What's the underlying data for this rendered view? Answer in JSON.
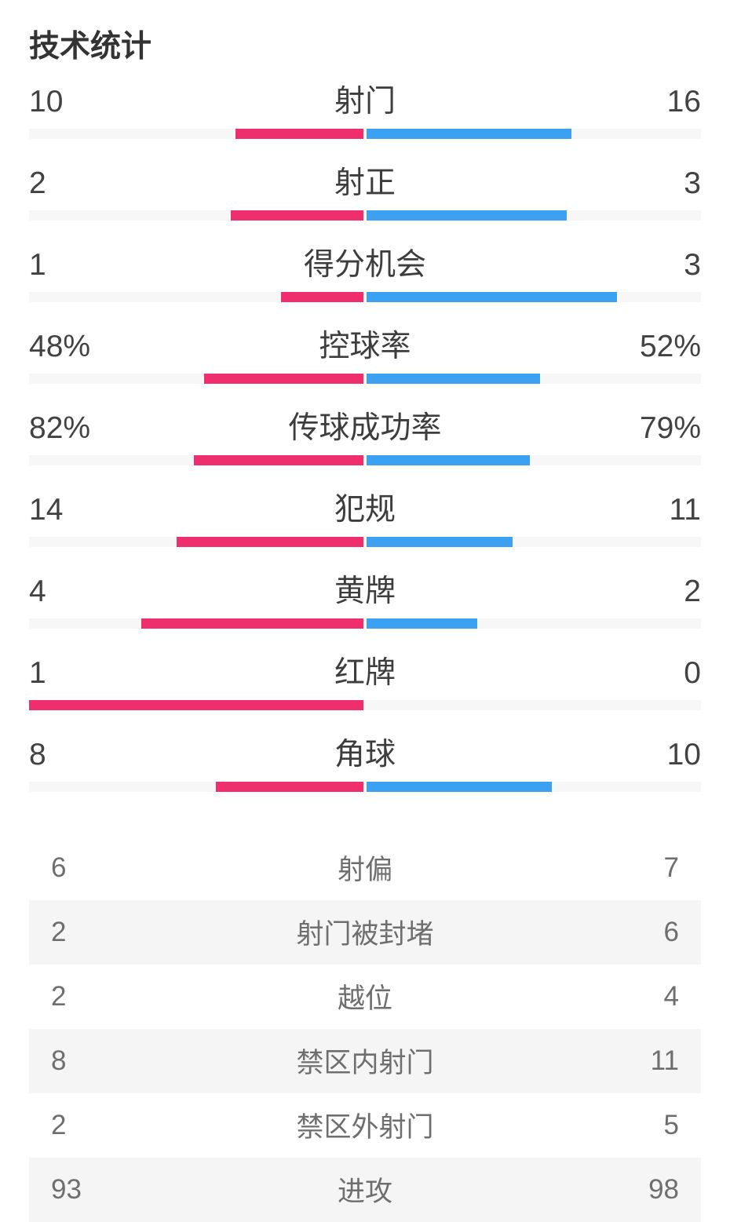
{
  "title": "技术统计",
  "colors": {
    "home": "#ee2e6d",
    "away": "#3da1f2",
    "track": "#f7f7f8",
    "stripe": "#f5f5f6",
    "title_text": "#333333",
    "bar_section_text": "#3d3d3d",
    "list_section_text": "#6e6e6e"
  },
  "chart_data": {
    "type": "bar",
    "variant": "bilateral-paired-stat-bars",
    "title": "技术统计",
    "legend_position": "none",
    "grid": false,
    "series": [
      {
        "name": "home",
        "color": "#ee2e6d",
        "side": "left"
      },
      {
        "name": "away",
        "color": "#3da1f2",
        "side": "right"
      }
    ],
    "bars": [
      {
        "label": "射门",
        "home": 10,
        "away": 16,
        "home_display": "10",
        "away_display": "16"
      },
      {
        "label": "射正",
        "home": 2,
        "away": 3,
        "home_display": "2",
        "away_display": "3"
      },
      {
        "label": "得分机会",
        "home": 1,
        "away": 3,
        "home_display": "1",
        "away_display": "3"
      },
      {
        "label": "控球率",
        "home": 48,
        "away": 52,
        "home_display": "48%",
        "away_display": "52%"
      },
      {
        "label": "传球成功率",
        "home": 82,
        "away": 79,
        "home_display": "82%",
        "away_display": "79%"
      },
      {
        "label": "犯规",
        "home": 14,
        "away": 11,
        "home_display": "14",
        "away_display": "11"
      },
      {
        "label": "黄牌",
        "home": 4,
        "away": 2,
        "home_display": "4",
        "away_display": "2"
      },
      {
        "label": "红牌",
        "home": 1,
        "away": 0,
        "home_display": "1",
        "away_display": "0"
      },
      {
        "label": "角球",
        "home": 8,
        "away": 10,
        "home_display": "8",
        "away_display": "10"
      }
    ],
    "list": [
      {
        "label": "射偏",
        "home_display": "6",
        "away_display": "7"
      },
      {
        "label": "射门被封堵",
        "home_display": "2",
        "away_display": "6"
      },
      {
        "label": "越位",
        "home_display": "2",
        "away_display": "4"
      },
      {
        "label": "禁区内射门",
        "home_display": "8",
        "away_display": "11"
      },
      {
        "label": "禁区外射门",
        "home_display": "2",
        "away_display": "5"
      },
      {
        "label": "进攻",
        "home_display": "93",
        "away_display": "98"
      }
    ]
  }
}
